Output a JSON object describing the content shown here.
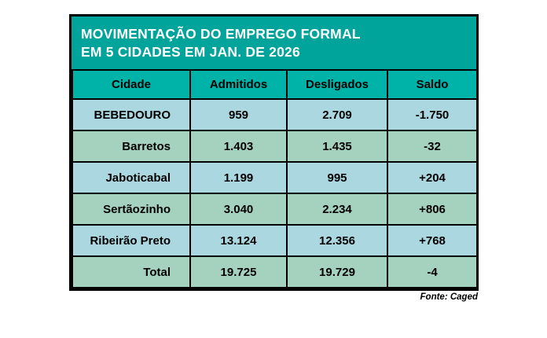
{
  "title": {
    "line1": "MOVIMENTAÇÃO DO EMPREGO FORMAL",
    "line2": "EM 5 CIDADES EM JAN. DE 2026"
  },
  "source": "Fonte: Caged",
  "colors": {
    "title_bg": "#00a49a",
    "header_bg": "#00b3a8",
    "row_blue": "#abd7e1",
    "row_green": "#a5d2bf",
    "border": "#000000",
    "title_text": "#ffffff",
    "cell_text": "#000000"
  },
  "chart_data": {
    "type": "table",
    "title": "MOVIMENTAÇÃO DO EMPREGO FORMAL EM 5 CIDADES EM JAN. DE 2026",
    "columns": [
      "Cidade",
      "Admitidos",
      "Desligados",
      "Saldo"
    ],
    "rows": [
      [
        "BEBEDOURO",
        "959",
        "2.709",
        "-1.750"
      ],
      [
        "Barretos",
        "1.403",
        "1.435",
        "-32"
      ],
      [
        "Jaboticabal",
        "1.199",
        "995",
        "+204"
      ],
      [
        "Sertãozinho",
        "3.040",
        "2.234",
        "+806"
      ],
      [
        "Ribeirão Preto",
        "13.124",
        "12.356",
        "+768"
      ],
      [
        "Total",
        "19.725",
        "19.729",
        "-4"
      ]
    ],
    "source": "Fonte: Caged",
    "layout": {
      "grid": "on",
      "row_stripe_colors": [
        "#abd7e1",
        "#a5d2bf"
      ]
    }
  }
}
